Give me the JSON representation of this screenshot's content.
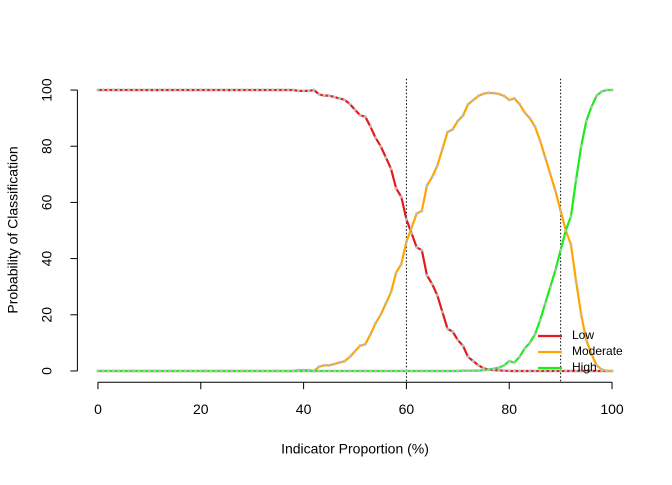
{
  "chart_data": {
    "type": "line",
    "xlabel": "Indicator Proportion (%)",
    "ylabel": "Probability of Classification",
    "x": [
      0,
      1,
      2,
      3,
      4,
      5,
      6,
      7,
      8,
      9,
      10,
      11,
      12,
      13,
      14,
      15,
      16,
      17,
      18,
      19,
      20,
      21,
      22,
      23,
      24,
      25,
      26,
      27,
      28,
      29,
      30,
      31,
      32,
      33,
      34,
      35,
      36,
      37,
      38,
      39,
      40,
      41,
      42,
      43,
      44,
      45,
      46,
      47,
      48,
      49,
      50,
      51,
      52,
      53,
      54,
      55,
      56,
      57,
      58,
      59,
      60,
      61,
      62,
      63,
      64,
      65,
      66,
      67,
      68,
      69,
      70,
      71,
      72,
      73,
      74,
      75,
      76,
      77,
      78,
      79,
      80,
      81,
      82,
      83,
      84,
      85,
      86,
      87,
      88,
      89,
      90,
      91,
      92,
      93,
      94,
      95,
      96,
      97,
      98,
      99,
      100
    ],
    "series": [
      {
        "name": "Low",
        "color": "#e31a1c",
        "values": [
          100,
          100,
          100,
          100,
          100,
          100,
          100,
          100,
          100,
          100,
          100,
          100,
          100,
          100,
          100,
          100,
          100,
          100,
          100,
          100,
          100,
          100,
          100,
          100,
          100,
          100,
          100,
          100,
          100,
          100,
          100,
          100,
          100,
          100,
          100,
          100,
          100,
          100,
          100,
          99.7,
          99.7,
          99.7,
          100,
          98.5,
          98,
          98,
          97.5,
          97,
          96.5,
          95,
          93,
          91,
          90.5,
          87,
          83,
          80,
          76,
          72,
          65,
          62,
          54,
          49,
          44,
          43,
          34,
          31,
          27,
          21,
          15,
          14,
          11,
          9,
          5,
          3.5,
          2,
          1,
          0.5,
          0.3,
          0.2,
          0.1,
          0,
          0,
          0,
          0,
          0,
          0,
          0,
          0,
          0,
          0,
          0,
          0,
          0,
          0,
          0,
          0,
          0,
          0,
          0,
          0,
          0
        ]
      },
      {
        "name": "Moderate",
        "color": "#ffa500",
        "values": [
          0,
          0,
          0,
          0,
          0,
          0,
          0,
          0,
          0,
          0,
          0,
          0,
          0,
          0,
          0,
          0,
          0,
          0,
          0,
          0,
          0,
          0,
          0,
          0,
          0,
          0,
          0,
          0,
          0,
          0,
          0,
          0,
          0,
          0,
          0,
          0,
          0,
          0,
          0,
          0.3,
          0.3,
          0.3,
          0,
          1.5,
          2,
          2,
          2.5,
          3,
          3.5,
          5,
          7,
          9,
          9.5,
          13,
          17,
          20,
          24,
          28,
          35,
          38,
          46,
          51,
          56,
          57,
          66,
          69,
          73,
          79,
          85,
          86,
          89,
          90.9,
          94.9,
          96.4,
          97.9,
          98.7,
          99,
          98.9,
          98.6,
          97.9,
          96.5,
          97,
          95,
          92,
          90,
          87,
          82,
          76,
          70,
          64,
          57,
          50,
          45,
          32,
          20,
          11,
          6,
          2,
          0.5,
          0,
          0
        ]
      },
      {
        "name": "High",
        "color": "#1aee1a",
        "values": [
          0,
          0,
          0,
          0,
          0,
          0,
          0,
          0,
          0,
          0,
          0,
          0,
          0,
          0,
          0,
          0,
          0,
          0,
          0,
          0,
          0,
          0,
          0,
          0,
          0,
          0,
          0,
          0,
          0,
          0,
          0,
          0,
          0,
          0,
          0,
          0,
          0,
          0,
          0,
          0,
          0,
          0,
          0,
          0,
          0,
          0,
          0,
          0,
          0,
          0,
          0,
          0,
          0,
          0,
          0,
          0,
          0,
          0,
          0,
          0,
          0,
          0,
          0,
          0,
          0,
          0,
          0,
          0,
          0,
          0,
          0,
          0.1,
          0.1,
          0.1,
          0.1,
          0.3,
          0.5,
          0.8,
          1.2,
          2,
          3.5,
          3,
          5,
          8,
          10,
          13,
          18,
          24,
          30,
          36,
          43,
          50,
          55,
          68,
          80,
          89,
          94,
          98,
          99.5,
          100,
          100
        ]
      }
    ],
    "marker_color": "#bbbbbb",
    "vlines": [
      60,
      90
    ],
    "xlim": [
      -4,
      104
    ],
    "ylim": [
      -4,
      104
    ],
    "xticks": [
      0,
      20,
      40,
      60,
      80,
      100
    ],
    "yticks": [
      0,
      20,
      40,
      60,
      80,
      100
    ],
    "legend": "bottom-right"
  }
}
